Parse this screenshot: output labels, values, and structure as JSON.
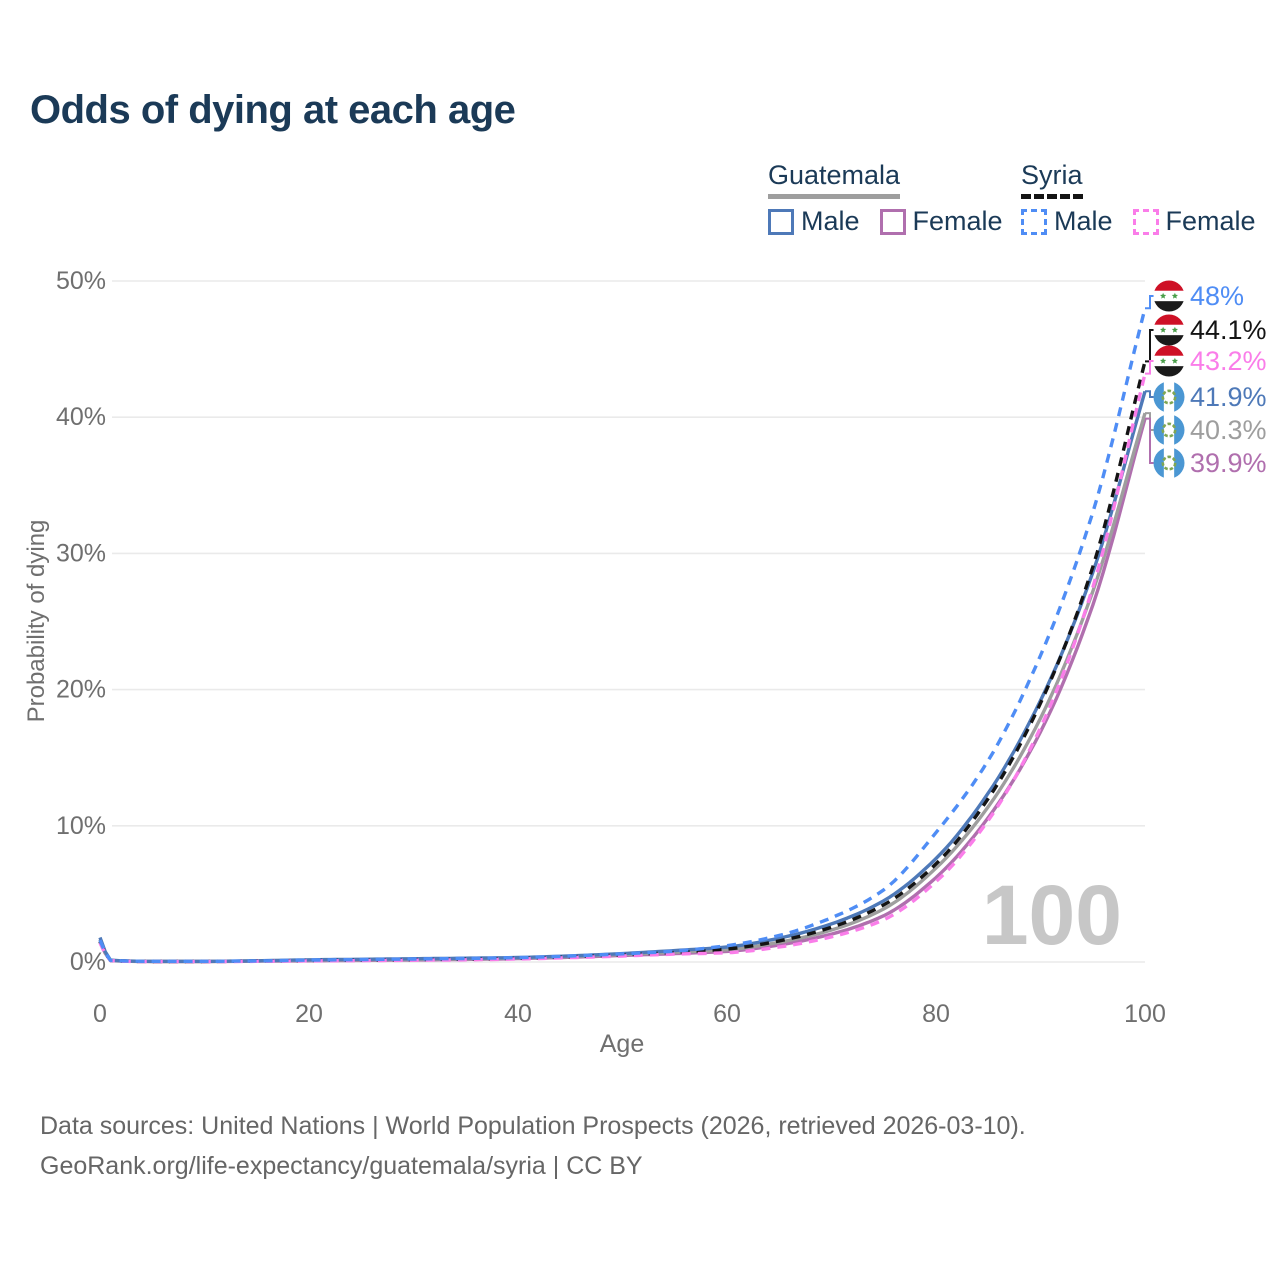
{
  "title": "Odds of dying at each age",
  "legend": {
    "groups": [
      {
        "country": "Guatemala",
        "line_style": "solid",
        "underline_color": "#9e9e9e",
        "items": [
          {
            "label": "Male",
            "color": "#4e79b8"
          },
          {
            "label": "Female",
            "color": "#b06fae"
          }
        ]
      },
      {
        "country": "Syria",
        "line_style": "dashed",
        "underline_color": "#141414",
        "items": [
          {
            "label": "Male",
            "color": "#4f8df5"
          },
          {
            "label": "Female",
            "color": "#fa7de9"
          }
        ]
      }
    ]
  },
  "watermark_age": "100",
  "colors": {
    "title": "#1b3a57",
    "axis_text": "#6f6f6f",
    "gridline": "#eaeaea",
    "watermark": "#c7c7c7",
    "footer_text": "#666666",
    "syria_flag_red": "#ce1126",
    "syria_flag_green": "#4a9e4a",
    "guatemala_flag_blue": "#4b97d3",
    "guatemala_wreath_green": "#7fa653"
  },
  "chart_data": {
    "type": "line",
    "title": "Odds of dying at each age",
    "xlabel": "Age",
    "ylabel": "Probability of dying",
    "xlim": [
      0,
      100
    ],
    "ylim": [
      0,
      50
    ],
    "grid": "horizontal",
    "legend_position": "top-right",
    "x_ticks": [
      {
        "value": 0,
        "label": "0"
      },
      {
        "value": 20,
        "label": "20"
      },
      {
        "value": 40,
        "label": "40"
      },
      {
        "value": 60,
        "label": "60"
      },
      {
        "value": 80,
        "label": "80"
      },
      {
        "value": 100,
        "label": "100"
      }
    ],
    "y_ticks": [
      {
        "value": 0,
        "label": "0%"
      },
      {
        "value": 10,
        "label": "10%"
      },
      {
        "value": 20,
        "label": "20%"
      },
      {
        "value": 30,
        "label": "30%"
      },
      {
        "value": 40,
        "label": "40%"
      },
      {
        "value": 50,
        "label": "50%"
      }
    ],
    "ages": [
      0,
      1,
      5,
      10,
      15,
      20,
      25,
      30,
      35,
      40,
      45,
      50,
      55,
      60,
      65,
      70,
      75,
      80,
      85,
      90,
      95,
      100
    ],
    "series": [
      {
        "id": "guatemala-female",
        "name": "Guatemala Female",
        "color": "#b06fae",
        "dash": false,
        "flag": "guatemala",
        "end_label": "39.9%",
        "values": [
          1.5,
          0.11,
          0.04,
          0.04,
          0.06,
          0.09,
          0.12,
          0.15,
          0.19,
          0.25,
          0.35,
          0.48,
          0.62,
          0.78,
          1.25,
          2.05,
          3.4,
          6.2,
          10.6,
          16.9,
          26.2,
          39.9
        ]
      },
      {
        "id": "guatemala-both",
        "name": "Guatemala Both sexes",
        "color": "#9e9e9e",
        "dash": false,
        "flag": "guatemala",
        "end_label": "40.3%",
        "values": [
          1.65,
          0.12,
          0.04,
          0.04,
          0.08,
          0.13,
          0.16,
          0.19,
          0.23,
          0.29,
          0.4,
          0.55,
          0.72,
          0.9,
          1.45,
          2.35,
          3.9,
          6.9,
          11.4,
          17.9,
          27.2,
          40.3
        ]
      },
      {
        "id": "guatemala-male",
        "name": "Guatemala Male",
        "color": "#4e79b8",
        "dash": false,
        "flag": "guatemala",
        "end_label": "41.9%",
        "values": [
          1.8,
          0.13,
          0.05,
          0.05,
          0.09,
          0.16,
          0.2,
          0.24,
          0.28,
          0.33,
          0.45,
          0.62,
          0.84,
          1.1,
          1.75,
          2.8,
          4.5,
          7.6,
          12.4,
          19.2,
          28.6,
          41.9
        ]
      },
      {
        "id": "syria-both",
        "name": "Syria Both sexes",
        "color": "#141414",
        "dash": true,
        "flag": "syria",
        "end_label": "44.1%",
        "values": [
          1.5,
          0.11,
          0.04,
          0.04,
          0.07,
          0.11,
          0.14,
          0.17,
          0.21,
          0.27,
          0.38,
          0.52,
          0.7,
          0.95,
          1.55,
          2.55,
          4.2,
          7.2,
          12.0,
          19.0,
          29.0,
          44.1
        ]
      },
      {
        "id": "syria-female",
        "name": "Syria Female",
        "color": "#fa7de9",
        "dash": true,
        "flag": "syria",
        "end_label": "43.2%",
        "values": [
          1.4,
          0.1,
          0.03,
          0.03,
          0.05,
          0.08,
          0.1,
          0.13,
          0.16,
          0.22,
          0.32,
          0.44,
          0.58,
          0.68,
          1.1,
          1.85,
          3.1,
          5.9,
          10.4,
          17.2,
          27.5,
          43.2
        ]
      },
      {
        "id": "syria-male",
        "name": "Syria Male",
        "color": "#4f8df5",
        "dash": true,
        "flag": "syria",
        "end_label": "48%",
        "values": [
          1.6,
          0.12,
          0.05,
          0.05,
          0.08,
          0.14,
          0.18,
          0.22,
          0.26,
          0.32,
          0.44,
          0.6,
          0.8,
          1.2,
          1.95,
          3.25,
          5.3,
          9.5,
          14.8,
          22.5,
          33.0,
          48.0
        ]
      }
    ]
  },
  "footer": {
    "line1": "Data sources: United Nations | World Population Prospects (2026, retrieved 2026-03-10).",
    "line2": "GeoRank.org/life-expectancy/guatemala/syria | CC BY"
  }
}
